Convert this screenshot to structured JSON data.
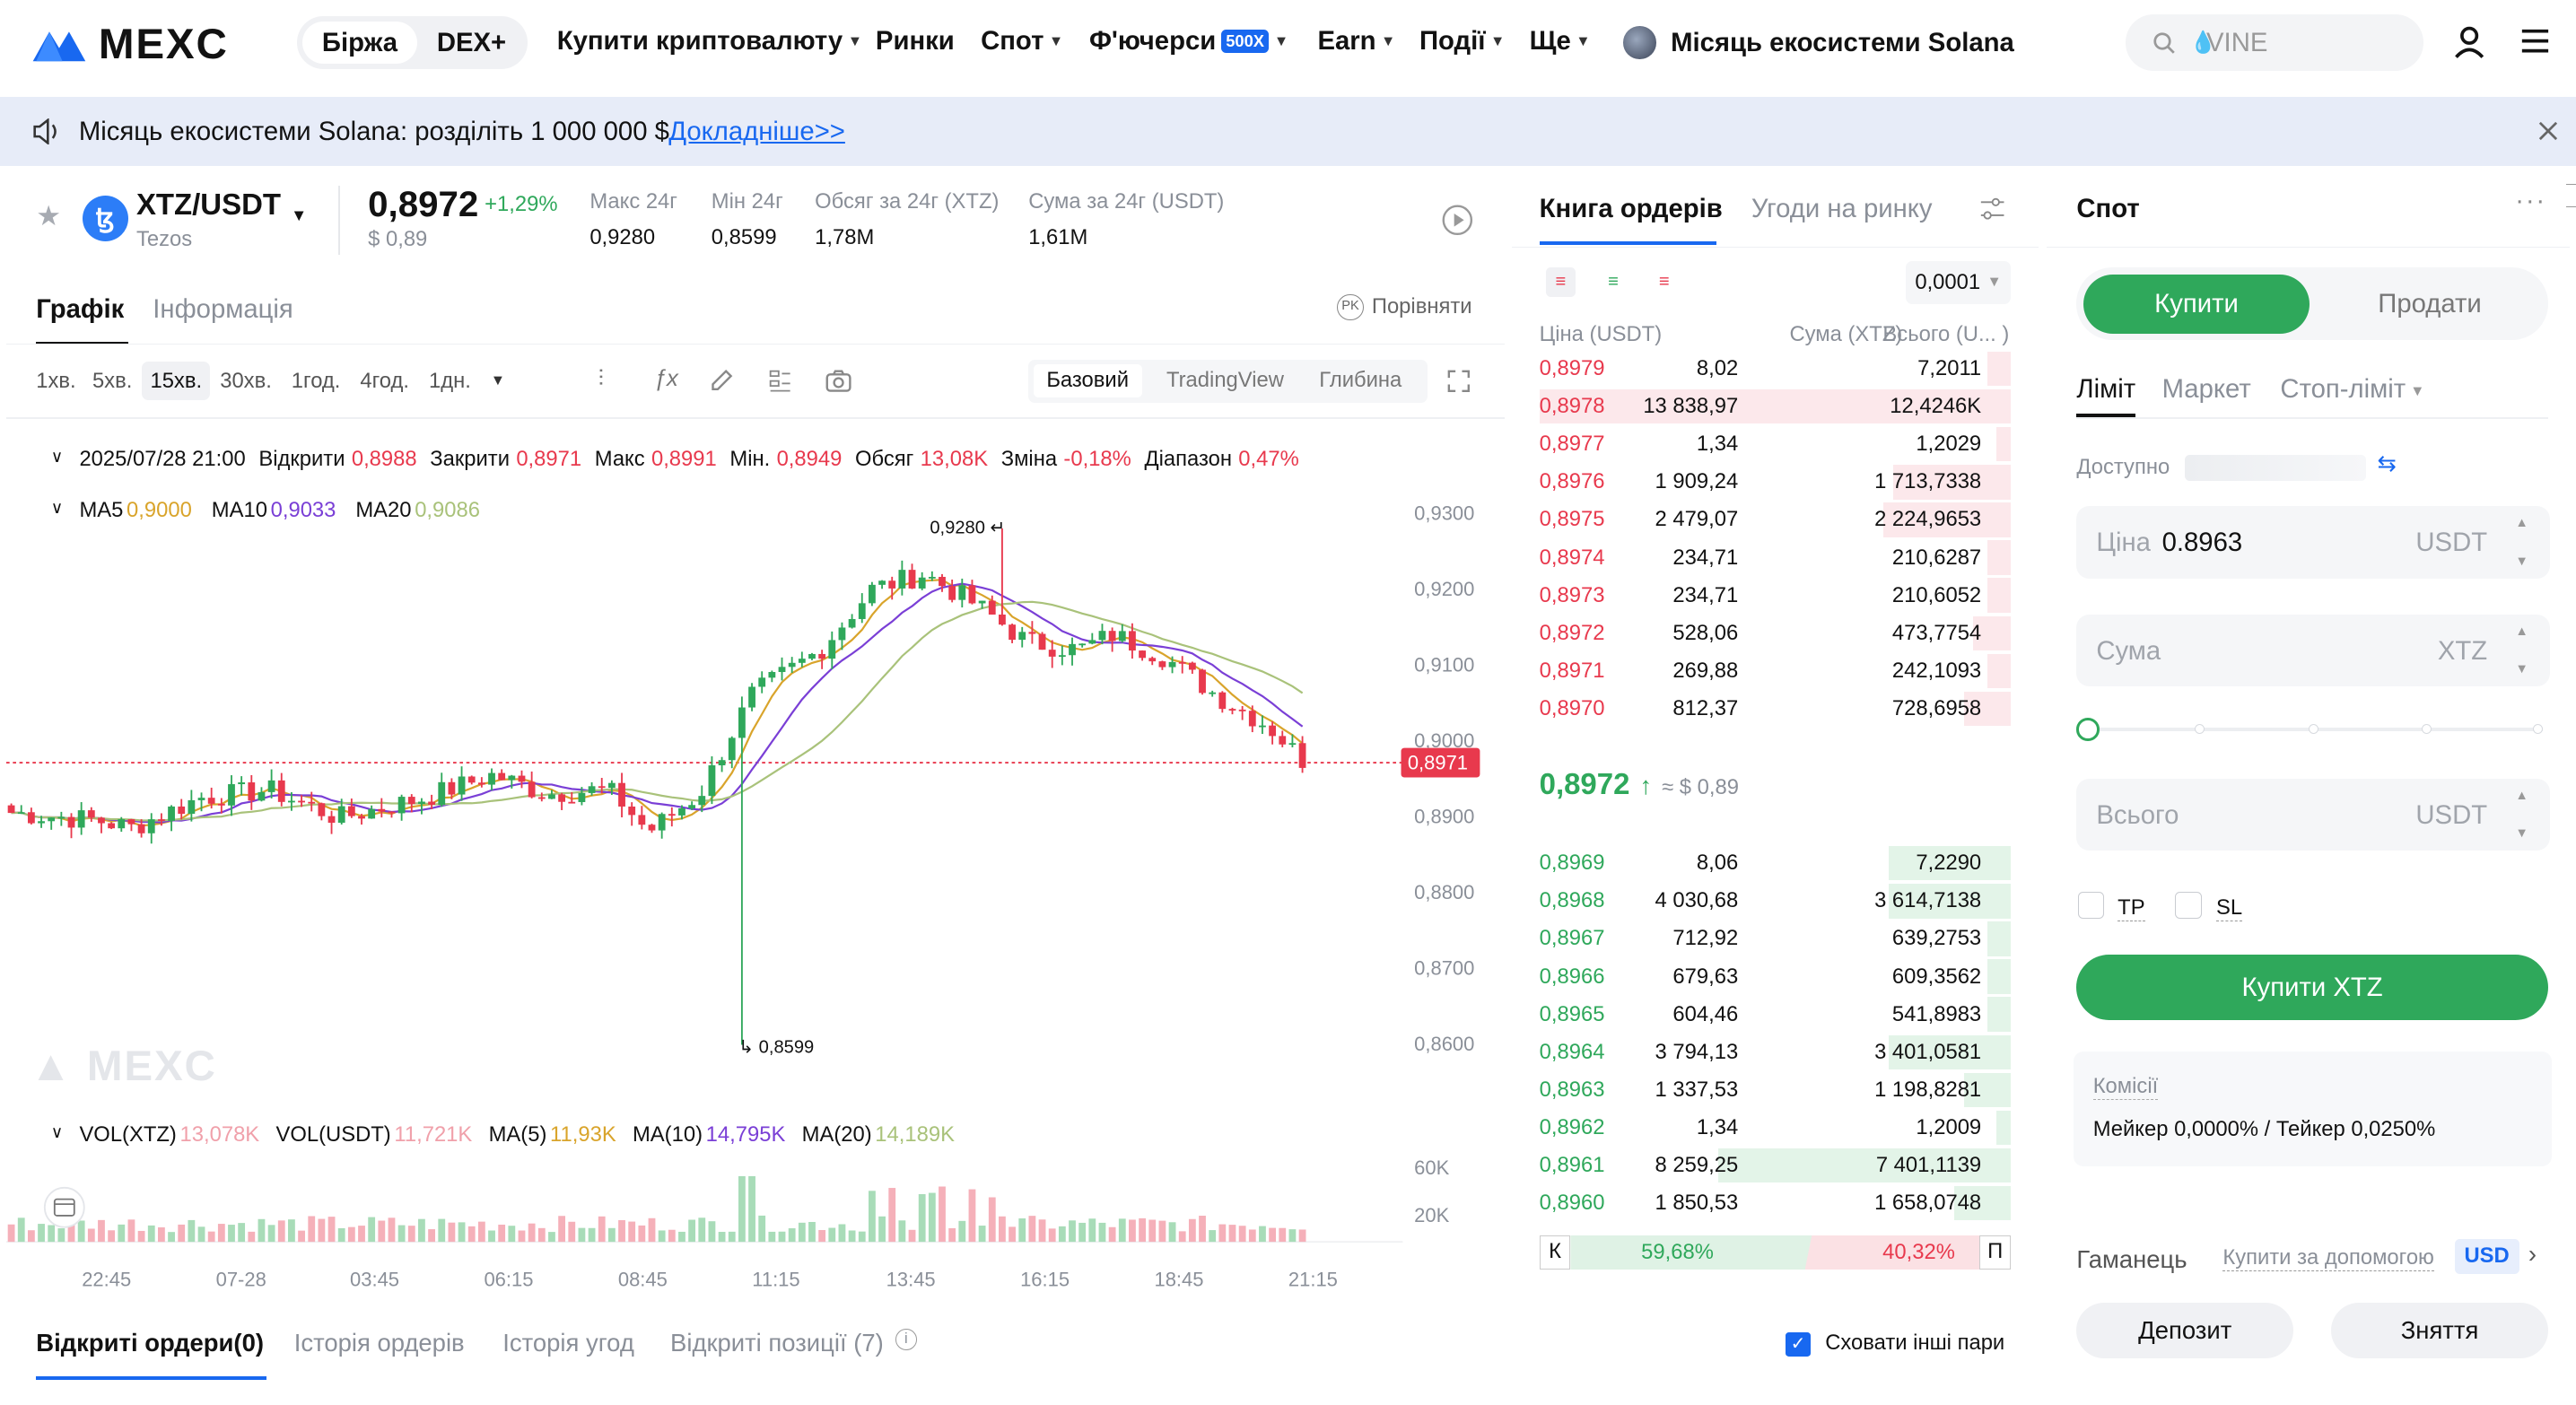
{
  "brand": {
    "logo_text": "MEXC"
  },
  "nav": {
    "switch": [
      "Біржа",
      "DEX+"
    ],
    "items": [
      {
        "label": "Купити криптовалюту",
        "caret": true
      },
      {
        "label": "Ринки",
        "caret": false
      },
      {
        "label": "Спот",
        "caret": true
      },
      {
        "label": "Ф'ючерси",
        "badge": "500X",
        "caret": true
      },
      {
        "label": "Earn",
        "caret": true
      },
      {
        "label": "Події",
        "caret": true
      },
      {
        "label": "Ще",
        "caret": true
      }
    ],
    "promo": "Місяць екосистеми Solana",
    "search_placeholder": "VINE"
  },
  "banner": {
    "text": "Місяць екосистеми Solana: розділіть 1 000 000 $",
    "link": "Докладніше>>"
  },
  "ticker": {
    "pair": "XTZ/USDT",
    "name": "Tezos",
    "price": "0,8972",
    "change": "+1,29%",
    "usd": "$ 0,89",
    "stats": [
      {
        "label": "Макс 24г",
        "value": "0,9280"
      },
      {
        "label": "Мін 24г",
        "value": "0,8599"
      },
      {
        "label": "Обсяг за 24г (XTZ)",
        "value": "1,78M"
      },
      {
        "label": "Сума за 24г (USDT)",
        "value": "1,61M"
      }
    ]
  },
  "chart_tabs": {
    "chart": "Графік",
    "info": "Інформація",
    "compare": "Порівняти"
  },
  "timeframes": [
    "1хв.",
    "5хв.",
    "15хв.",
    "30хв.",
    "1год.",
    "4год.",
    "1дн."
  ],
  "active_timeframe": "15хв.",
  "chart_modes": [
    "Базовий",
    "TradingView",
    "Глибина"
  ],
  "candle_info": {
    "date": "2025/07/28 21:00",
    "open_l": "Відкрити",
    "open": "0,8988",
    "close_l": "Закрити",
    "close": "0,8971",
    "high_l": "Макс",
    "high": "0,8991",
    "low_l": "Мін.",
    "low": "0,8949",
    "vol_l": "Обсяг",
    "vol": "13,08K",
    "chg_l": "Зміна",
    "chg": "-0,18%",
    "range_l": "Діапазон",
    "range": "0,47%"
  },
  "ma_legend": {
    "ma5_l": "MA5",
    "ma5": "0,9000",
    "ma10_l": "MA10",
    "ma10": "0,9033",
    "ma20_l": "MA20",
    "ma20": "0,9086"
  },
  "vol_legend": {
    "xtz_l": "VOL(XTZ)",
    "xtz": "13,078K",
    "usdt_l": "VOL(USDT)",
    "usdt": "11,721K",
    "ma5_l": "MA(5)",
    "ma5": "11,93K",
    "ma10_l": "MA(10)",
    "ma10": "14,795K",
    "ma20_l": "MA(20)",
    "ma20": "14,189K"
  },
  "chart_data": {
    "type": "candlestick",
    "pair": "XTZ/USDT",
    "interval": "15m",
    "y_ticks": [
      "0,9300",
      "0,9200",
      "0,9100",
      "0,9000",
      "0,8900",
      "0,8800",
      "0,8700",
      "0,8600"
    ],
    "ylim": [
      0.856,
      0.934
    ],
    "x_ticks": [
      "22:45",
      "07-28",
      "03:45",
      "06:15",
      "08:45",
      "11:15",
      "13:45",
      "16:15",
      "18:45",
      "21:15"
    ],
    "last_price": "0,8971",
    "max_label": "0,9280",
    "min_label": "0,8599",
    "vol_ticks": [
      "60K",
      "20K"
    ],
    "ma_colors": {
      "ma5": "#d9a42b",
      "ma10": "#7a3fd6",
      "ma20": "#a9c27a"
    },
    "up_color": "#2fa85b",
    "down_color": "#e8394d"
  },
  "orderbook": {
    "tabs": [
      "Книга ордерів",
      "Угоди на ринку"
    ],
    "precision": "0,0001",
    "headers": [
      "Ціна (USDT)",
      "Сума (XTZ)",
      "Всього (U... )"
    ],
    "asks": [
      {
        "p": "0,8979",
        "a": "8,02",
        "t": "7,2011",
        "d": 0.05
      },
      {
        "p": "0,8978",
        "a": "13 838,97",
        "t": "12,4246K",
        "d": 1.0
      },
      {
        "p": "0,8977",
        "a": "1,34",
        "t": "1,2029",
        "d": 0.03
      },
      {
        "p": "0,8976",
        "a": "1 909,24",
        "t": "1 713,7338",
        "d": 0.25
      },
      {
        "p": "0,8975",
        "a": "2 479,07",
        "t": "2 224,9653",
        "d": 0.27
      },
      {
        "p": "0,8974",
        "a": "234,71",
        "t": "210,6287",
        "d": 0.05
      },
      {
        "p": "0,8973",
        "a": "234,71",
        "t": "210,6052",
        "d": 0.05
      },
      {
        "p": "0,8972",
        "a": "528,06",
        "t": "473,7754",
        "d": 0.08
      },
      {
        "p": "0,8971",
        "a": "269,88",
        "t": "242,1093",
        "d": 0.05
      },
      {
        "p": "0,8970",
        "a": "812,37",
        "t": "728,6958",
        "d": 0.1
      }
    ],
    "mid_price": "0,8972",
    "mid_usd": "≈ $ 0,89",
    "bids": [
      {
        "p": "0,8969",
        "a": "8,06",
        "t": "7,2290",
        "d": 0.26
      },
      {
        "p": "0,8968",
        "a": "4 030,68",
        "t": "3 614,7138",
        "d": 0.26
      },
      {
        "p": "0,8967",
        "a": "712,92",
        "t": "639,2753",
        "d": 0.05
      },
      {
        "p": "0,8966",
        "a": "679,63",
        "t": "609,3562",
        "d": 0.05
      },
      {
        "p": "0,8965",
        "a": "604,46",
        "t": "541,8983",
        "d": 0.05
      },
      {
        "p": "0,8964",
        "a": "3 794,13",
        "t": "3 401,0581",
        "d": 0.26
      },
      {
        "p": "0,8963",
        "a": "1 337,53",
        "t": "1 198,8281",
        "d": 0.1
      },
      {
        "p": "0,8962",
        "a": "1,34",
        "t": "1,2009",
        "d": 0.03
      },
      {
        "p": "0,8961",
        "a": "8 259,25",
        "t": "7 401,1139",
        "d": 0.62
      },
      {
        "p": "0,8960",
        "a": "1 850,53",
        "t": "1 658,0748",
        "d": 0.12
      }
    ],
    "buy_label": "К",
    "buy_pct": "59,68%",
    "sell_label": "П",
    "sell_pct": "40,32%",
    "buy_ratio": 0.5968
  },
  "trade": {
    "title": "Спот",
    "buy": "Купити",
    "sell": "Продати",
    "types": [
      "Ліміт",
      "Маркет",
      "Стоп-ліміт"
    ],
    "available": "Доступно",
    "price_label": "Ціна",
    "price_value": "0.8963",
    "price_unit": "USDT",
    "amount_label": "Сума",
    "amount_unit": "XTZ",
    "total_label": "Всього",
    "total_unit": "USDT",
    "slider_value": 0,
    "tp": "TP",
    "sl": "SL",
    "submit": "Купити XTZ",
    "fee_title": "Комісії",
    "fee_text": "Мейкер 0,0000% / Тейкер 0,0250%",
    "wallet": "Гаманець",
    "buy_with": "Купити за допомогою",
    "currency": "USD",
    "deposit": "Депозит",
    "withdraw": "Зняття"
  },
  "bottom": {
    "tabs": [
      "Відкриті ордери(0)",
      "Історія ордерів",
      "Історія угод",
      "Відкриті позиції (7)"
    ],
    "hide_pairs": "Сховати інші пари"
  }
}
